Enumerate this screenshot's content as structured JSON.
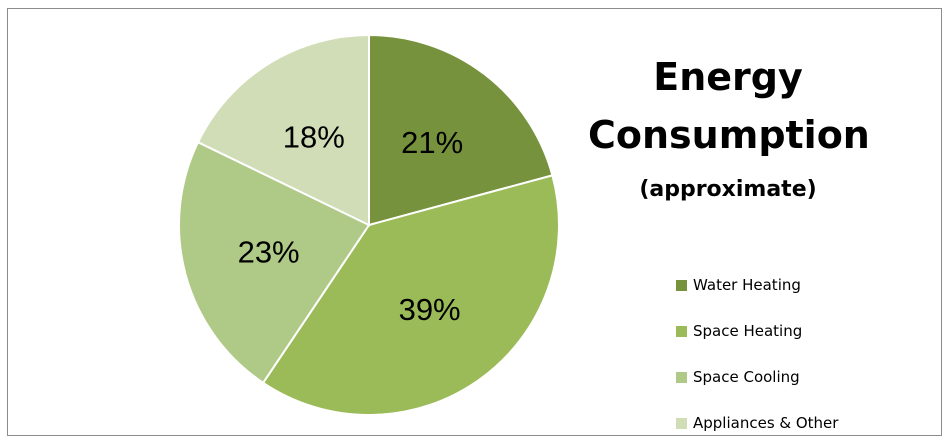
{
  "chart_data": {
    "type": "pie",
    "title": "Energy Consumption",
    "subtitle": "(approximate)",
    "categories": [
      "Water Heating",
      "Space Heating",
      "Space Cooling",
      "Appliances & Other"
    ],
    "values": [
      21,
      39,
      23,
      18
    ],
    "labels": [
      "21%",
      "39%",
      "23%",
      "18%"
    ],
    "colors": [
      "#76923c",
      "#9bbb59",
      "#afc986",
      "#d0ddb6"
    ],
    "legend_position": "right"
  }
}
